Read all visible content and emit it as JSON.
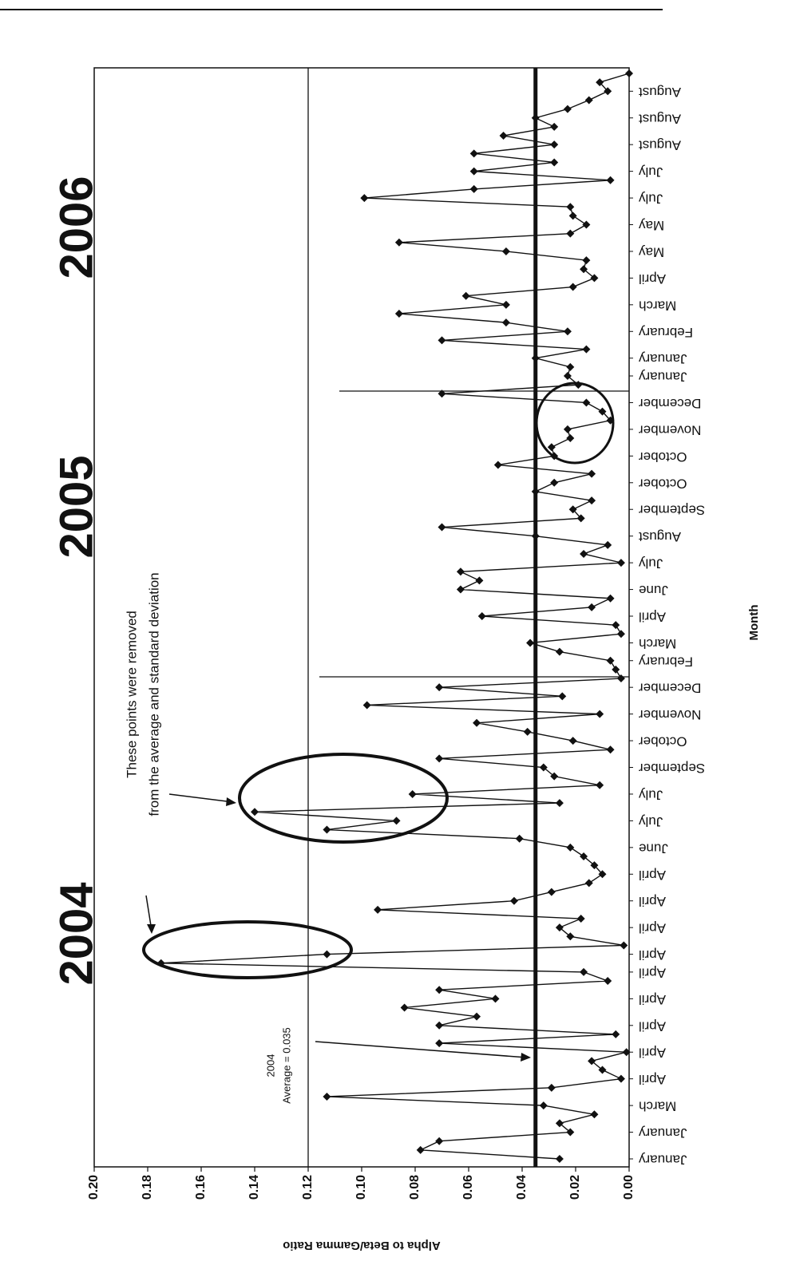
{
  "chart_data": {
    "type": "line",
    "y_axis_label": "Alpha to Beta/Gamma Ratio",
    "x_axis_label": "Month",
    "year_labels": [
      "2004",
      "2005",
      "2006"
    ],
    "annotation_removed": [
      "These points were removed",
      "from the average and standard deviation"
    ],
    "annotation_average": [
      "2004",
      "Average = 0.035"
    ],
    "average": 0.035,
    "reference_value": 0.12,
    "ylim": [
      0,
      0.2
    ],
    "yticks": [
      {
        "value": 0,
        "label": "0.00"
      },
      {
        "value": 0.02,
        "label": "0.02"
      },
      {
        "value": 0.04,
        "label": "0.04"
      },
      {
        "value": 0.06,
        "label": "0.06"
      },
      {
        "value": 0.08,
        "label": "0.08"
      },
      {
        "value": 0.1,
        "label": "0.10"
      },
      {
        "value": 0.12,
        "label": "0.12"
      },
      {
        "value": 0.14,
        "label": "0.14"
      },
      {
        "value": 0.16,
        "label": "0.16"
      },
      {
        "value": 0.18,
        "label": "0.18"
      },
      {
        "value": 0.2,
        "label": "0.20"
      }
    ],
    "categories": [
      "January",
      null,
      null,
      "January",
      null,
      null,
      "March",
      null,
      null,
      "April",
      null,
      null,
      "April",
      null,
      null,
      "April",
      null,
      null,
      "April",
      null,
      null,
      "April",
      null,
      "April",
      null,
      null,
      "April",
      null,
      null,
      "April",
      null,
      null,
      "April",
      null,
      null,
      "June",
      null,
      null,
      "July",
      null,
      null,
      "July",
      null,
      null,
      "September",
      null,
      null,
      "October",
      null,
      null,
      "November",
      null,
      null,
      "December",
      null,
      null,
      "February",
      null,
      "March",
      null,
      null,
      "April",
      null,
      null,
      "June",
      null,
      null,
      "July",
      null,
      null,
      "August",
      null,
      null,
      "September",
      null,
      null,
      "October",
      null,
      null,
      "October",
      null,
      null,
      "November",
      null,
      null,
      "December",
      null,
      null,
      "January",
      null,
      "January",
      null,
      null,
      "February",
      null,
      null,
      "March",
      null,
      null,
      "April",
      null,
      null,
      "May",
      null,
      null,
      "May",
      null,
      null,
      "July",
      null,
      null,
      "July",
      null,
      null,
      "August",
      null,
      null,
      "August",
      null,
      null,
      "August",
      null,
      null
    ],
    "series": [
      {
        "color": "#111111",
        "values": [
          0.026,
          0.078,
          0.071,
          0.022,
          0.026,
          0.013,
          0.032,
          0.113,
          0.029,
          0.003,
          0.01,
          0.014,
          0.001,
          0.071,
          0.005,
          0.071,
          0.057,
          0.084,
          0.05,
          0.071,
          0.008,
          0.017,
          0.175,
          0.113,
          0.002,
          0.022,
          0.026,
          0.018,
          0.094,
          0.043,
          0.029,
          0.015,
          0.01,
          0.013,
          0.017,
          0.022,
          0.041,
          0.113,
          0.087,
          0.14,
          0.026,
          0.081,
          0.011,
          0.028,
          0.032,
          0.071,
          0.007,
          0.021,
          0.038,
          0.057,
          0.011,
          0.098,
          0.025,
          0.071,
          0.003,
          0.005,
          0.007,
          0.026,
          0.037,
          0.003,
          0.005,
          0.055,
          0.014,
          0.007,
          0.063,
          0.056,
          0.063,
          0.003,
          0.017,
          0.008,
          0.035,
          0.07,
          0.018,
          0.021,
          0.014,
          0.035,
          0.028,
          0.014,
          0.049,
          0.028,
          0.029,
          0.022,
          0.023,
          0.007,
          0.01,
          0.016,
          0.07,
          0.019,
          0.023,
          0.022,
          0.035,
          0.016,
          0.07,
          0.023,
          0.046,
          0.086,
          0.046,
          0.061,
          0.021,
          0.013,
          0.017,
          0.016,
          0.046,
          0.086,
          0.022,
          0.016,
          0.021,
          0.022,
          0.099,
          0.058,
          0.007,
          0.058,
          0.028,
          0.058,
          0.028,
          0.047,
          0.028,
          0.035,
          0.023,
          0.015,
          0.008,
          0.011,
          0.0
        ]
      }
    ]
  }
}
